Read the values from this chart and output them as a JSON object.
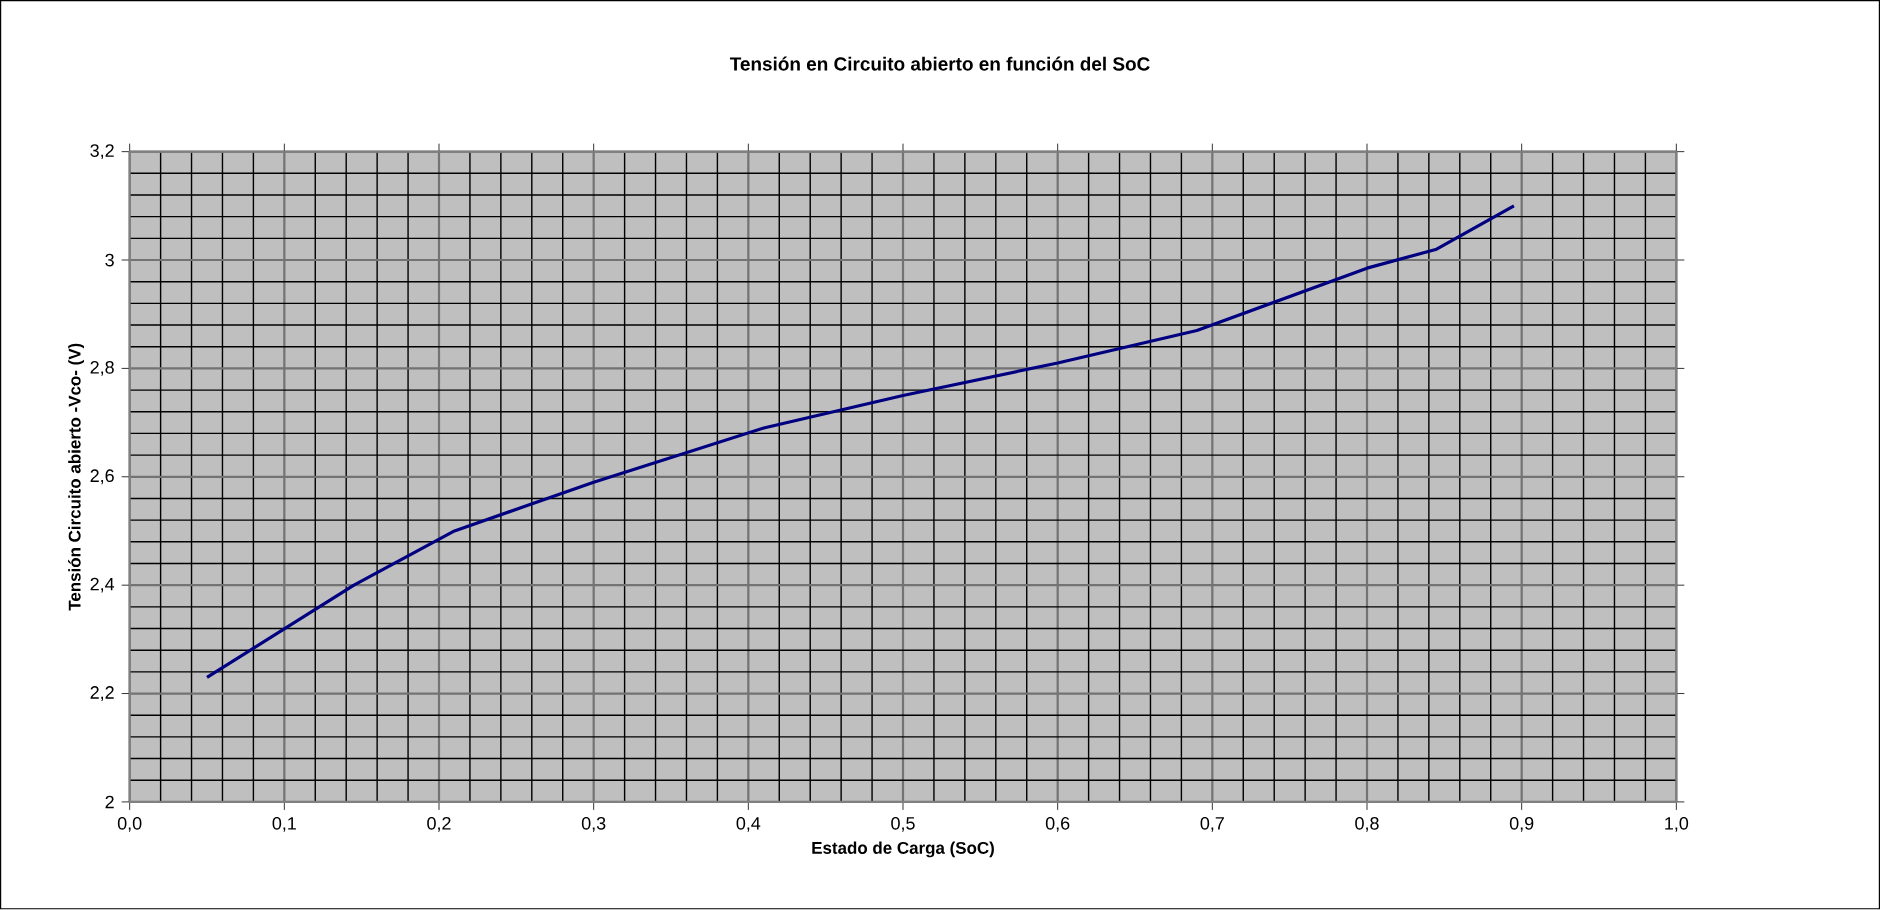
{
  "chart_data": {
    "type": "line",
    "title": "Tensión en Circuito abierto en función del SoC",
    "xlabel": "Estado de Carga (SoC)",
    "ylabel": "Tensión Circuito abierto -Vco- (V)",
    "x": [
      0.05,
      0.145,
      0.21,
      0.3,
      0.41,
      0.5,
      0.6,
      0.69,
      0.8,
      0.845,
      0.895
    ],
    "series": [
      {
        "color": "#000080",
        "values": [
          2.23,
          2.4,
          2.5,
          2.59,
          2.69,
          2.75,
          2.81,
          2.87,
          2.985,
          3.02,
          3.1
        ]
      }
    ],
    "xlim": [
      0,
      1
    ],
    "xticks": [
      {
        "value": 0,
        "label": "0,0"
      },
      {
        "value": 0.1,
        "label": "0,1"
      },
      {
        "value": 0.2,
        "label": "0,2"
      },
      {
        "value": 0.3,
        "label": "0,3"
      },
      {
        "value": 0.4,
        "label": "0,4"
      },
      {
        "value": 0.5,
        "label": "0,5"
      },
      {
        "value": 0.6,
        "label": "0,6"
      },
      {
        "value": 0.7,
        "label": "0,7"
      },
      {
        "value": 0.8,
        "label": "0,8"
      },
      {
        "value": 0.9,
        "label": "0,9"
      },
      {
        "value": 1,
        "label": "1,0"
      }
    ],
    "ylim": [
      2,
      3.2
    ],
    "yticks": [
      2,
      {
        "value": 2.2,
        "label": "2,2"
      },
      {
        "value": 2.4,
        "label": "2,4"
      },
      {
        "value": 2.6,
        "label": "2,6"
      },
      {
        "value": 2.8,
        "label": "2,8"
      },
      3,
      {
        "value": 3.2,
        "label": "3,2"
      }
    ],
    "grid": true,
    "marker": "none",
    "line_style": "solid"
  }
}
